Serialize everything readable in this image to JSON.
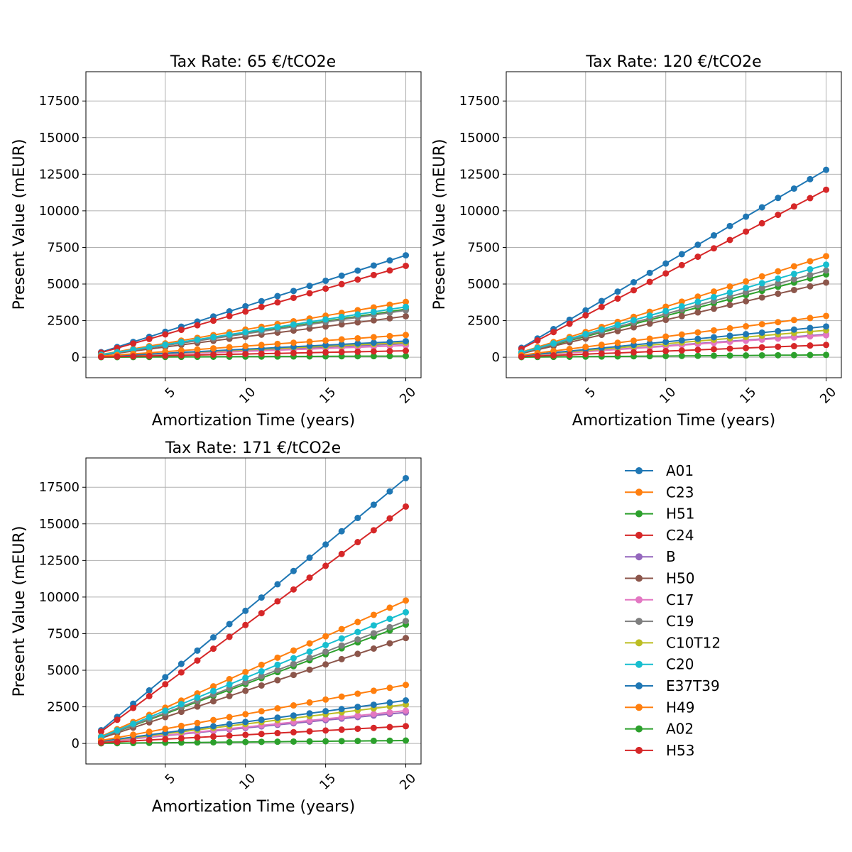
{
  "colors": {
    "A01": "#1f77b4",
    "C23": "#ff7f0e",
    "H51": "#2ca02c",
    "C24": "#d62728",
    "B": "#9467bd",
    "H50": "#8c564b",
    "C17": "#e377c2",
    "C19": "#7f7f7f",
    "C10T12": "#bcbd22",
    "C20": "#17becf",
    "E37T39": "#1f77b4",
    "H49": "#ff7f0e",
    "A02": "#2ca02c",
    "H53": "#d62728"
  },
  "legend": {
    "entries": [
      "A01",
      "C23",
      "H51",
      "C24",
      "B",
      "H50",
      "C17",
      "C19",
      "C10T12",
      "C20",
      "E37T39",
      "H49",
      "A02",
      "H53"
    ]
  },
  "chart_data": [
    {
      "type": "line",
      "title": "Tax Rate: 65 €/tCO2e",
      "xlabel": "Amortization Time (years)",
      "ylabel": "Present Value (mEUR)",
      "x": [
        1,
        2,
        3,
        4,
        5,
        6,
        7,
        8,
        9,
        10,
        11,
        12,
        13,
        14,
        15,
        16,
        17,
        18,
        19,
        20
      ],
      "xticks": [
        5,
        10,
        15,
        20
      ],
      "yticks": [
        0,
        2500,
        5000,
        7500,
        10000,
        12500,
        15000,
        17500
      ],
      "xlim": [
        0.05,
        20.95
      ],
      "ylim": [
        -1400,
        19500
      ],
      "grid": true,
      "series": [
        {
          "name": "A01",
          "slope": 348
        },
        {
          "name": "C23",
          "slope": 189
        },
        {
          "name": "H51",
          "slope": 164
        },
        {
          "name": "C24",
          "slope": 312
        },
        {
          "name": "B",
          "slope": 46
        },
        {
          "name": "H50",
          "slope": 140
        },
        {
          "name": "C17",
          "slope": 40
        },
        {
          "name": "C19",
          "slope": 160
        },
        {
          "name": "C10T12",
          "slope": 50
        },
        {
          "name": "C20",
          "slope": 172
        },
        {
          "name": "E37T39",
          "slope": 55
        },
        {
          "name": "H49",
          "slope": 76
        },
        {
          "name": "A02",
          "slope": 4
        },
        {
          "name": "H53",
          "slope": 22
        }
      ]
    },
    {
      "type": "line",
      "title": "Tax Rate: 120 €/tCO2e",
      "xlabel": "Amortization Time (years)",
      "ylabel": "Present Value (mEUR)",
      "x": [
        1,
        2,
        3,
        4,
        5,
        6,
        7,
        8,
        9,
        10,
        11,
        12,
        13,
        14,
        15,
        16,
        17,
        18,
        19,
        20
      ],
      "xticks": [
        5,
        10,
        15,
        20
      ],
      "yticks": [
        0,
        2500,
        5000,
        7500,
        10000,
        12500,
        15000,
        17500
      ],
      "xlim": [
        0.05,
        20.95
      ],
      "ylim": [
        -1400,
        19500
      ],
      "grid": true,
      "series": [
        {
          "name": "A01",
          "slope": 640
        },
        {
          "name": "C23",
          "slope": 345
        },
        {
          "name": "H51",
          "slope": 283
        },
        {
          "name": "C24",
          "slope": 572
        },
        {
          "name": "B",
          "slope": 78
        },
        {
          "name": "H50",
          "slope": 255
        },
        {
          "name": "C17",
          "slope": 75
        },
        {
          "name": "C19",
          "slope": 296
        },
        {
          "name": "C10T12",
          "slope": 92
        },
        {
          "name": "C20",
          "slope": 316
        },
        {
          "name": "E37T39",
          "slope": 105
        },
        {
          "name": "H49",
          "slope": 141
        },
        {
          "name": "A02",
          "slope": 8
        },
        {
          "name": "H53",
          "slope": 42
        }
      ]
    },
    {
      "type": "line",
      "title": "Tax Rate: 171 €/tCO2e",
      "xlabel": "Amortization Time (years)",
      "ylabel": "Present Value (mEUR)",
      "x": [
        1,
        2,
        3,
        4,
        5,
        6,
        7,
        8,
        9,
        10,
        11,
        12,
        13,
        14,
        15,
        16,
        17,
        18,
        19,
        20
      ],
      "xticks": [
        5,
        10,
        15,
        20
      ],
      "yticks": [
        0,
        2500,
        5000,
        7500,
        10000,
        12500,
        15000,
        17500
      ],
      "xlim": [
        0.05,
        20.95
      ],
      "ylim": [
        -1400,
        19500
      ],
      "grid": true,
      "series": [
        {
          "name": "A01",
          "slope": 906
        },
        {
          "name": "C23",
          "slope": 488
        },
        {
          "name": "H51",
          "slope": 406
        },
        {
          "name": "C24",
          "slope": 809
        },
        {
          "name": "B",
          "slope": 106
        },
        {
          "name": "H50",
          "slope": 360
        },
        {
          "name": "C17",
          "slope": 112
        },
        {
          "name": "C19",
          "slope": 418
        },
        {
          "name": "C10T12",
          "slope": 133
        },
        {
          "name": "C20",
          "slope": 448
        },
        {
          "name": "E37T39",
          "slope": 147
        },
        {
          "name": "H49",
          "slope": 200
        },
        {
          "name": "A02",
          "slope": 10
        },
        {
          "name": "H53",
          "slope": 59
        }
      ]
    }
  ]
}
